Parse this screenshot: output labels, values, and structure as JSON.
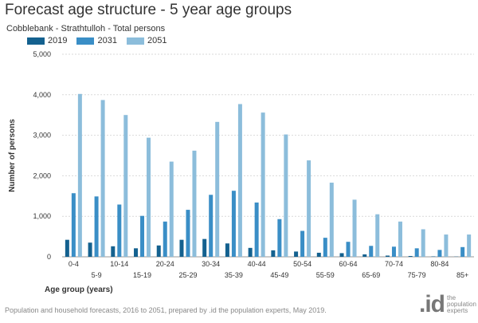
{
  "header": {
    "title": "Forecast age structure - 5 year age groups",
    "subtitle": "Cobblebank - Strathtulloh - Total persons"
  },
  "footer": {
    "source": "Population and household forecasts, 2016 to 2051, prepared by .id the population experts, May 2019."
  },
  "logo": {
    "mark": ".id",
    "tagline": "the population experts"
  },
  "colors": {
    "s2019": "#14618f",
    "s2031": "#3a8ec6",
    "s2051": "#8cbddb",
    "grid": "#d9d9d9",
    "axis": "#333333"
  },
  "chart_data": {
    "type": "bar",
    "title": "Forecast age structure - 5 year age groups",
    "subtitle": "Cobblebank - Strathtulloh - Total persons",
    "xlabel": "Age group (years)",
    "ylabel": "Number of persons",
    "ylim": [
      0,
      5000
    ],
    "yticks": [
      "0",
      "1,000",
      "2,000",
      "3,000",
      "4,000",
      "5,000"
    ],
    "ytick_values": [
      0,
      1000,
      2000,
      3000,
      4000,
      5000
    ],
    "grid": "horizontal dotted",
    "legend_position": "top-left",
    "categories": [
      "0-4",
      "5-9",
      "10-14",
      "15-19",
      "20-24",
      "25-29",
      "30-34",
      "35-39",
      "40-44",
      "45-49",
      "50-54",
      "55-59",
      "60-64",
      "65-69",
      "70-74",
      "75-79",
      "80-84",
      "85+"
    ],
    "series": [
      {
        "name": "2019",
        "color": "#14618f",
        "values": [
          420,
          350,
          260,
          210,
          280,
          420,
          440,
          330,
          220,
          160,
          130,
          100,
          90,
          60,
          30,
          20,
          10,
          5
        ]
      },
      {
        "name": "2031",
        "color": "#3a8ec6",
        "values": [
          1570,
          1490,
          1290,
          1010,
          870,
          1160,
          1530,
          1630,
          1340,
          930,
          640,
          470,
          370,
          270,
          250,
          210,
          170,
          240
        ]
      },
      {
        "name": "2051",
        "color": "#8cbddb",
        "values": [
          4020,
          3870,
          3500,
          2940,
          2350,
          2620,
          3330,
          3770,
          3560,
          3020,
          2380,
          1830,
          1410,
          1050,
          870,
          680,
          550,
          550
        ]
      }
    ]
  }
}
